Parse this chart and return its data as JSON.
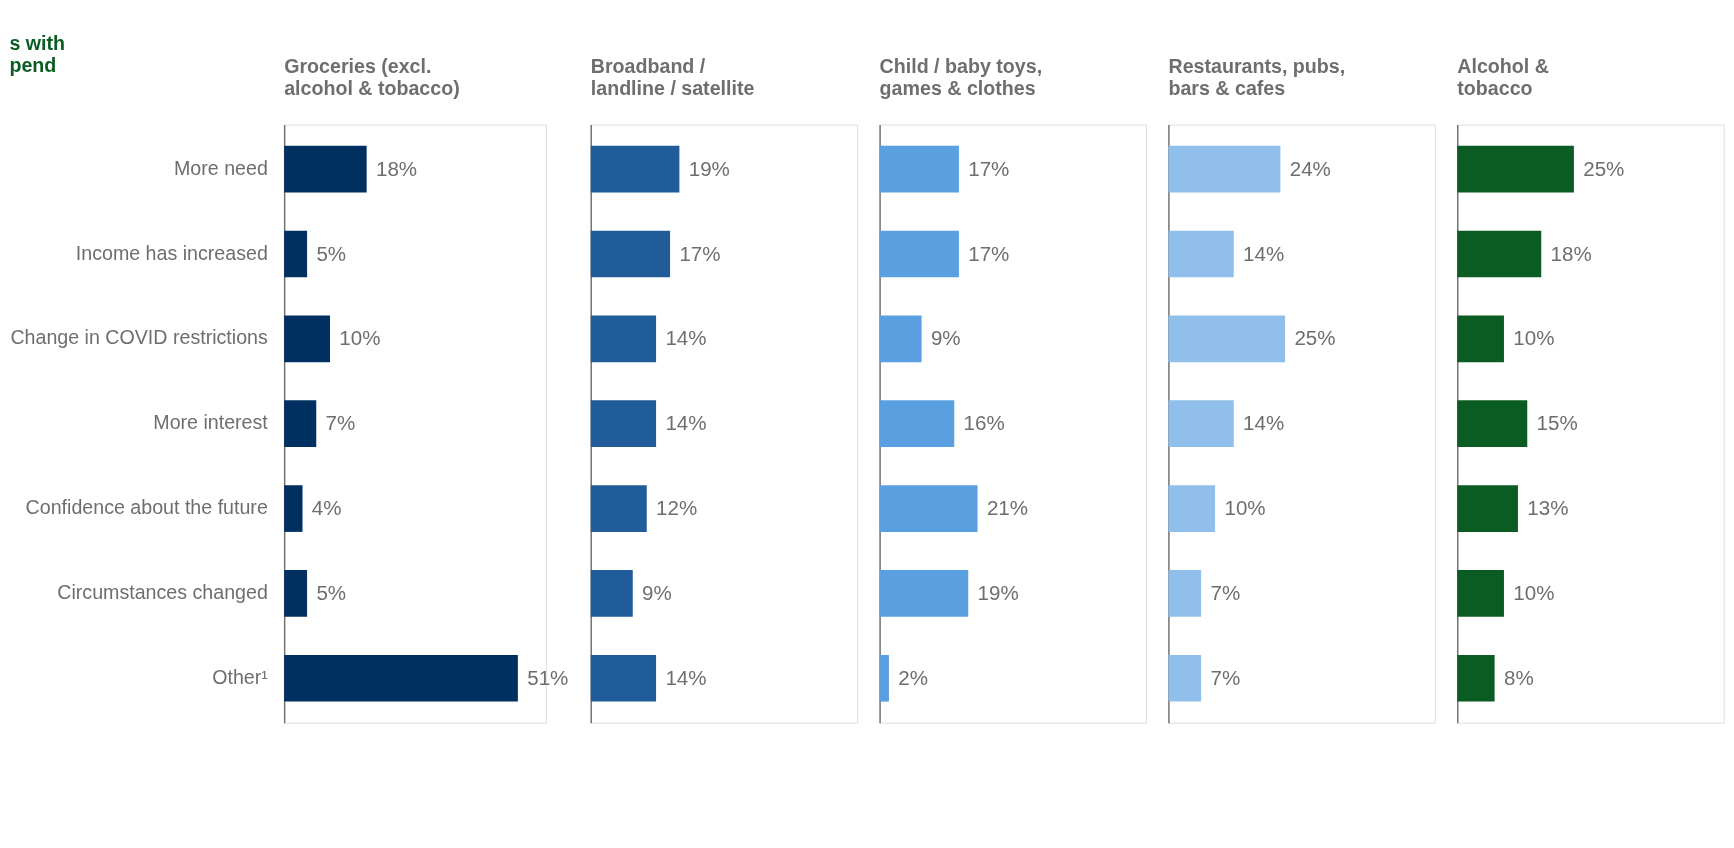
{
  "chart_data": [
    {
      "type": "bar",
      "orientation": "horizontal",
      "title": [
        "Groceries (excl.",
        "alcohol & tobacco)"
      ],
      "annotations": [
        "s with\npend"
      ],
      "tick_labels": "y",
      "categories": [
        "More need",
        "Income has increased",
        "Change in COVID restrictions",
        "More interest",
        "Confidence about the future",
        "Circumstances changed",
        "Other¹"
      ],
      "values": [
        18,
        5,
        10,
        7,
        4,
        5,
        51
      ],
      "value_labels": [
        "18%",
        "5%",
        "10%",
        "7%",
        "4%",
        "5%",
        "51%"
      ],
      "color": "#003060"
    },
    {
      "type": "bar",
      "orientation": "horizontal",
      "title": [
        "Broadband /",
        "landline / satellite"
      ],
      "tick_labels": false,
      "categories": [
        null,
        null,
        null,
        null,
        null,
        null,
        null
      ],
      "values": [
        19,
        17,
        14,
        14,
        12,
        9,
        14
      ],
      "value_labels": [
        "19%",
        "17%",
        "14%",
        "14%",
        "12%",
        "9%",
        "14%"
      ],
      "color": "#1f5c99"
    },
    {
      "type": "bar",
      "orientation": "horizontal",
      "title": [
        "Child / baby toys,",
        "games & clothes"
      ],
      "tick_labels": false,
      "categories": [
        null,
        null,
        null,
        null,
        null,
        null,
        null
      ],
      "values": [
        17,
        17,
        9,
        16,
        21,
        19,
        2
      ],
      "value_labels": [
        "17%",
        "17%",
        "9%",
        "16%",
        "21%",
        "19%",
        "2%"
      ],
      "color": "#5aa0e0"
    },
    {
      "type": "bar",
      "orientation": "horizontal",
      "title": [
        "Restaurants, pubs,",
        "bars & cafes"
      ],
      "tick_labels": false,
      "categories": [
        null,
        null,
        null,
        null,
        null,
        null,
        null
      ],
      "values": [
        24,
        14,
        25,
        14,
        10,
        7,
        7
      ],
      "value_labels": [
        "24%",
        "14%",
        "25%",
        "14%",
        "10%",
        "7%",
        "7%"
      ],
      "color": "#8fbfea"
    },
    {
      "type": "bar",
      "orientation": "horizontal",
      "title": [
        "Alcohol &",
        "tobacco"
      ],
      "tick_labels": false,
      "categories": [
        null,
        null,
        null,
        null,
        null,
        null,
        null
      ],
      "values": [
        25,
        18,
        10,
        15,
        13,
        10,
        8
      ],
      "value_labels": [
        "25%",
        "18%",
        "10%",
        "15%",
        "13%",
        "10%",
        "8%"
      ],
      "color": "#0a5c23"
    }
  ]
}
